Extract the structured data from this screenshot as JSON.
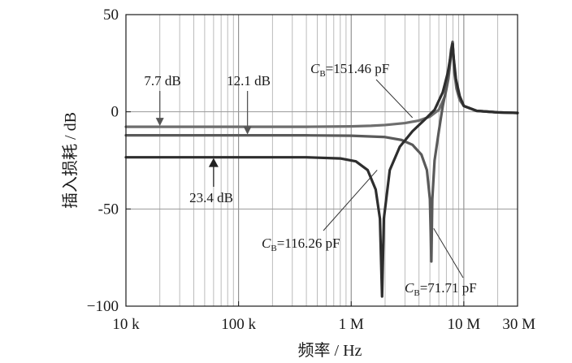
{
  "chart_data": {
    "type": "line",
    "xlabel": "频率 / Hz",
    "ylabel": "插入损耗 / dB",
    "xscale": "log",
    "xlim": [
      10000,
      30000000
    ],
    "ylim": [
      -100,
      50
    ],
    "grid": true,
    "x_ticks": [
      {
        "value": 10000,
        "label": "10 k"
      },
      {
        "value": 100000,
        "label": "100 k"
      },
      {
        "value": 1000000,
        "label": "1 M"
      },
      {
        "value": 10000000,
        "label": "10 M"
      },
      {
        "value": 30000000,
        "label": "30 M"
      }
    ],
    "y_ticks": [
      {
        "value": 50,
        "label": "50"
      },
      {
        "value": 0,
        "label": "0"
      },
      {
        "value": -50,
        "label": "-50"
      },
      {
        "value": -100,
        "label": "−100"
      }
    ],
    "series": [
      {
        "color": "#6e6e6e",
        "points": [
          [
            10000,
            -7.7
          ],
          [
            100000,
            -7.7
          ],
          [
            400000,
            -7.7
          ],
          [
            1000000,
            -7.5
          ],
          [
            1500000,
            -7.2
          ],
          [
            2000000,
            -6.8
          ],
          [
            3000000,
            -5.8
          ],
          [
            4000000,
            -4.5
          ],
          [
            5000000,
            -2.5
          ],
          [
            6000000,
            1
          ],
          [
            6800000,
            8
          ],
          [
            7300000,
            17
          ],
          [
            7600000,
            26
          ],
          [
            7800000,
            33
          ],
          [
            7950000,
            36
          ],
          [
            8050000,
            30
          ],
          [
            8250000,
            20
          ],
          [
            8600000,
            12
          ],
          [
            9200000,
            6
          ],
          [
            10000000,
            3
          ],
          [
            13000000,
            0.5
          ],
          [
            20000000,
            -0.3
          ],
          [
            30000000,
            -0.6
          ]
        ]
      },
      {
        "color": "#5a5a5a",
        "points": [
          [
            10000,
            -12.1
          ],
          [
            100000,
            -12.1
          ],
          [
            400000,
            -12.1
          ],
          [
            1000000,
            -12.3
          ],
          [
            2000000,
            -13
          ],
          [
            2800000,
            -14.5
          ],
          [
            3500000,
            -17
          ],
          [
            4200000,
            -22
          ],
          [
            4700000,
            -30
          ],
          [
            5000000,
            -45
          ],
          [
            5150000,
            -77
          ],
          [
            5250000,
            -45
          ],
          [
            5500000,
            -25
          ],
          [
            6000000,
            -10
          ],
          [
            6500000,
            3
          ],
          [
            7000000,
            12
          ],
          [
            7400000,
            22
          ],
          [
            7700000,
            32
          ],
          [
            7950000,
            36
          ],
          [
            8100000,
            28
          ],
          [
            8400000,
            18
          ],
          [
            9000000,
            9
          ],
          [
            10000000,
            3
          ],
          [
            13000000,
            0.5
          ],
          [
            20000000,
            -0.3
          ],
          [
            30000000,
            -0.6
          ]
        ]
      },
      {
        "color": "#2e2e2e",
        "points": [
          [
            10000,
            -23.4
          ],
          [
            100000,
            -23.4
          ],
          [
            400000,
            -23.4
          ],
          [
            800000,
            -24
          ],
          [
            1100000,
            -25.5
          ],
          [
            1400000,
            -30
          ],
          [
            1650000,
            -40
          ],
          [
            1800000,
            -55
          ],
          [
            1880000,
            -95
          ],
          [
            1950000,
            -55
          ],
          [
            2200000,
            -30
          ],
          [
            2700000,
            -18
          ],
          [
            3500000,
            -10
          ],
          [
            4500000,
            -4
          ],
          [
            5500000,
            1
          ],
          [
            6500000,
            10
          ],
          [
            7200000,
            20
          ],
          [
            7700000,
            30
          ],
          [
            7950000,
            35
          ],
          [
            8150000,
            27
          ],
          [
            8500000,
            17
          ],
          [
            9200000,
            8
          ],
          [
            10000000,
            3
          ],
          [
            13000000,
            0.5
          ],
          [
            20000000,
            -0.3
          ],
          [
            30000000,
            -0.6
          ]
        ]
      }
    ],
    "annotations": [
      {
        "label": "7.7 dB",
        "arrow_at": [
          20000,
          -7.7
        ],
        "arrow_dir": "down"
      },
      {
        "label": "12.1 dB",
        "arrow_at": [
          120000,
          -12.1
        ],
        "arrow_dir": "down"
      },
      {
        "label": "23.4 dB",
        "arrow_at": [
          60000,
          -23.4
        ],
        "arrow_dir": "up"
      },
      {
        "sub_prefix": "C",
        "subscript": "B",
        "value": "=151.46 pF",
        "points_to": [
          3500000,
          -3
        ]
      },
      {
        "sub_prefix": "C",
        "subscript": "B",
        "value": "=116.26 pF",
        "points_to": [
          1700000,
          -30
        ]
      },
      {
        "sub_prefix": "C",
        "subscript": "B",
        "value": "=71.71 pF",
        "points_to": [
          5400000,
          -60
        ]
      }
    ]
  }
}
